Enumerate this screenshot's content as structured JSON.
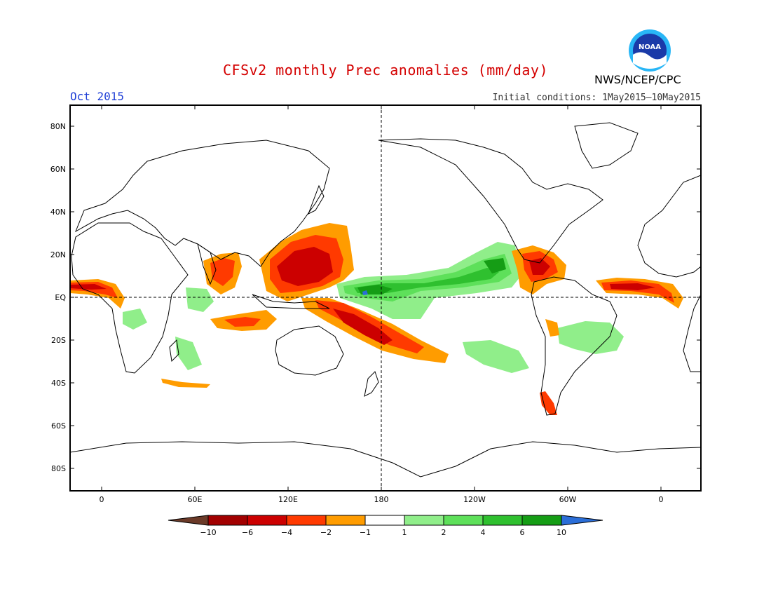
{
  "header": {
    "title": "CFSv2 monthly Prec anomalies (mm/day)",
    "month": "Oct 2015",
    "initial_conditions": "Initial conditions: 1May2015–10May2015",
    "agency": "NWS/NCEP/CPC",
    "logo_text": "NOAA"
  },
  "map": {
    "projection": "equirectangular",
    "center_longitude": 180,
    "lat_range": [
      -90,
      90
    ],
    "lat_ticks": [
      "80N",
      "60N",
      "40N",
      "20N",
      "EQ",
      "20S",
      "40S",
      "60S",
      "80S"
    ],
    "lon_ticks": [
      "0",
      "60E",
      "120E",
      "180",
      "120W",
      "60W",
      "0"
    ],
    "dashed_reference_lines": [
      "EQ",
      "180"
    ]
  },
  "colorbar": {
    "labels": [
      "−10",
      "−6",
      "−4",
      "−2",
      "−1",
      "1",
      "2",
      "4",
      "6",
      "10"
    ],
    "colors": {
      "below_min": "#6b3a28",
      "bins": [
        "#a20000",
        "#cc0000",
        "#ff3a00",
        "#ff9c00",
        "#ffffff",
        "#90ee8a",
        "#5ee05a",
        "#2fc02f",
        "#159d15"
      ],
      "above_max": "#2b6ed8"
    }
  }
}
